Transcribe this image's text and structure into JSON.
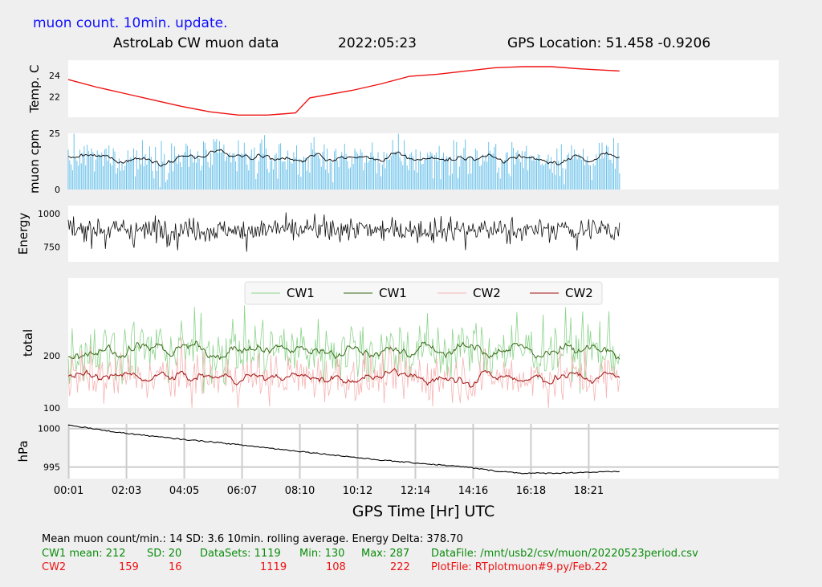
{
  "header": {
    "top_title": "muon count.  10min. update.",
    "title": "AstroLab CW muon data",
    "date": "2022:05:23",
    "gps_location": "GPS Location: 51.458    -0.9206"
  },
  "x_axis": {
    "label": "GPS Time  [Hr] UTC",
    "ticks": [
      "00:01",
      "02:03",
      "04:05",
      "06:07",
      "08:10",
      "10:12",
      "12:14",
      "14:16",
      "16:18",
      "18:21"
    ],
    "range_hr": [
      0,
      25
    ]
  },
  "chart_data": [
    {
      "type": "line",
      "panel": "temperature",
      "ylabel": "Temp. C",
      "yticks": [
        "22",
        "24"
      ],
      "ylim": [
        20.1,
        25.4
      ],
      "color": "#ee1111",
      "x_hr": [
        0,
        1,
        2,
        3,
        4,
        5,
        6,
        7,
        7.5,
        8,
        8.5,
        10,
        11,
        12,
        13,
        14,
        15,
        16,
        17,
        18,
        19.4
      ],
      "y": [
        23.6,
        22.9,
        22.3,
        21.7,
        21.1,
        20.6,
        20.3,
        20.3,
        20.4,
        20.5,
        21.9,
        22.6,
        23.2,
        23.9,
        24.1,
        24.4,
        24.7,
        24.8,
        24.8,
        24.6,
        24.4
      ]
    },
    {
      "type": "bar",
      "panel": "muon_cpm",
      "ylabel": "muon cpm",
      "yticks": [
        "0",
        "25"
      ],
      "ylim": [
        0,
        25
      ],
      "bar_color": "#6cc2ea",
      "avg_color": "#000000",
      "x_range_hr": [
        0,
        19.4
      ],
      "mean": 14,
      "sd": 3.6,
      "rolling_average_min": 10
    },
    {
      "type": "line",
      "panel": "energy",
      "ylabel": "Energy",
      "yticks": [
        "750",
        "1000"
      ],
      "ylim": [
        640,
        1060
      ],
      "color": "#111111",
      "x_range_hr": [
        0,
        19.4
      ],
      "mean": 880,
      "energy_delta": "378.70"
    },
    {
      "type": "line",
      "panel": "total",
      "ylabel": "total",
      "yticks": [
        "100",
        "200"
      ],
      "ylim": [
        100,
        350
      ],
      "legend_position": "top-center",
      "series": [
        {
          "name": "CW1",
          "color": "#8cd48c",
          "style": "raw"
        },
        {
          "name": "CW1",
          "color": "#3a6a1a",
          "style": "rolling"
        },
        {
          "name": "CW2",
          "color": "#f6b4b4",
          "style": "raw"
        },
        {
          "name": "CW2",
          "color": "#a01010",
          "style": "rolling"
        }
      ],
      "cw1": {
        "mean": 212,
        "sd": 20,
        "min": 130,
        "max": 287
      },
      "cw2": {
        "mean": 159,
        "sd": 16,
        "min": 108,
        "max": 222
      }
    },
    {
      "type": "line",
      "panel": "pressure",
      "ylabel": "hPa",
      "yticks": [
        "995",
        "1000"
      ],
      "ylim": [
        993.5,
        1000.6
      ],
      "grid": true,
      "color": "#000000",
      "x_hr": [
        0,
        1,
        2,
        3,
        4,
        5,
        6,
        7,
        8,
        9,
        10,
        11,
        12,
        13,
        14,
        15,
        16,
        17,
        18,
        19.4
      ],
      "y": [
        1000.5,
        999.9,
        999.4,
        999.0,
        998.6,
        998.3,
        997.9,
        997.5,
        997.1,
        996.7,
        996.3,
        995.9,
        995.6,
        995.3,
        995.0,
        994.5,
        994.2,
        994.2,
        994.3,
        994.4
      ]
    }
  ],
  "stats": {
    "line1": "Mean muon count/min.: 14  SD: 3.6   10min. rolling average.     Energy Delta:  378.70",
    "cw1": {
      "label": "CW1 mean: 212",
      "sd": "SD: 20",
      "datasets": "DataSets: 1119",
      "min": "Min: 130",
      "max": "Max: 287",
      "file": "DataFile: /mnt/usb2/csv/muon/20220523period.csv"
    },
    "cw2": {
      "label": "CW2",
      "mean": "159",
      "sd": "16",
      "datasets": "1119",
      "min": "108",
      "max": "222",
      "file": "PlotFile: RTplotmuon#9.py/Feb.22"
    }
  }
}
